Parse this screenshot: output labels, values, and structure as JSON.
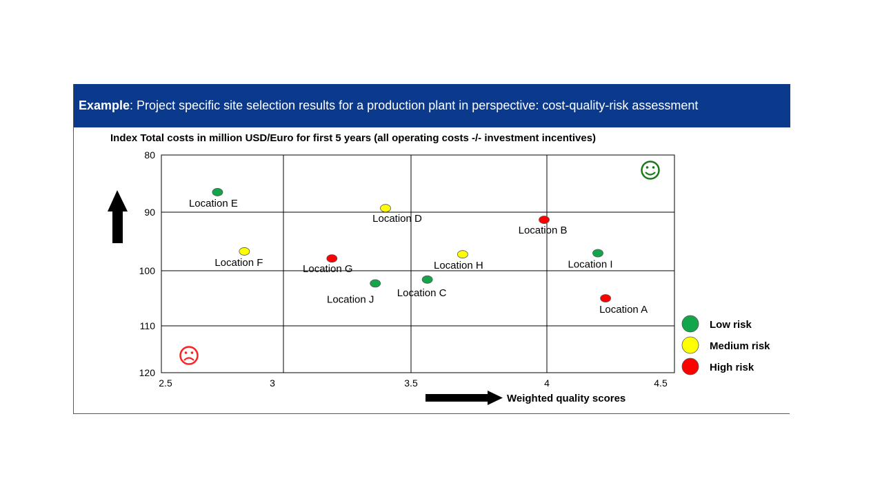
{
  "banner": {
    "bold": "Example",
    "text": ": Project specific site selection results for a production plant in perspective: cost-quality-risk assessment"
  },
  "colors": {
    "banner_bg": "#0b3a8c",
    "low": "#13a54a",
    "medium": "#ffff00",
    "high": "#ff0000",
    "good": "#1a7a1a",
    "bad": "#ff2020"
  },
  "icons": {
    "good": "smiley-icon",
    "bad": "frown-icon",
    "up": "up-arrow-icon",
    "right": "right-arrow-icon"
  },
  "chart_data": {
    "type": "scatter",
    "ylabel": "Index Total costs in million USD/Euro for first 5 years (all operating costs -/- investment incentives)",
    "xlabel": "Weighted quality scores",
    "xlim": [
      2.5,
      4.5
    ],
    "ylim": [
      80,
      120
    ],
    "y_inverted": true,
    "grid": true,
    "x_ticks": [
      "2.5",
      "3",
      "3.5",
      "4",
      "4.5"
    ],
    "y_ticks": [
      "80",
      "90",
      "100",
      "110",
      "120"
    ],
    "legend_position": "right",
    "legend": [
      {
        "name": "Low risk",
        "risk": "low"
      },
      {
        "name": "Medium risk",
        "risk": "medium"
      },
      {
        "name": "High risk",
        "risk": "high"
      }
    ],
    "points": [
      {
        "label": "Location E",
        "x": 2.73,
        "y": 86.5,
        "risk": "low"
      },
      {
        "label": "Location D",
        "x": 3.4,
        "y": 89.3,
        "risk": "medium"
      },
      {
        "label": "Location B",
        "x": 3.99,
        "y": 91.3,
        "risk": "high"
      },
      {
        "label": "Location F",
        "x": 2.84,
        "y": 96.7,
        "risk": "medium"
      },
      {
        "label": "Location G",
        "x": 3.19,
        "y": 97.9,
        "risk": "high"
      },
      {
        "label": "Location H",
        "x": 3.69,
        "y": 97.2,
        "risk": "medium"
      },
      {
        "label": "Location I",
        "x": 4.2,
        "y": 97.0,
        "risk": "low"
      },
      {
        "label": "Location J",
        "x": 3.36,
        "y": 102.3,
        "risk": "low"
      },
      {
        "label": "Location C",
        "x": 3.56,
        "y": 101.6,
        "risk": "low"
      },
      {
        "label": "Location A",
        "x": 4.23,
        "y": 105.0,
        "risk": "high"
      }
    ]
  }
}
